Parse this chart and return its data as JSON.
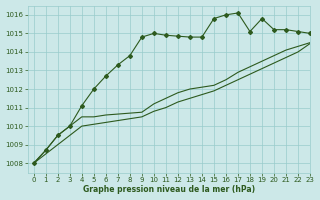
{
  "title": "Graphe pression niveau de la mer (hPa)",
  "bg_color": "#cce8e8",
  "grid_color": "#99cccc",
  "line_color": "#2d5a1e",
  "xlim": [
    -0.5,
    23
  ],
  "ylim": [
    1007.5,
    1016.5
  ],
  "yticks": [
    1008,
    1009,
    1010,
    1011,
    1012,
    1013,
    1014,
    1015,
    1016
  ],
  "xticks": [
    0,
    1,
    2,
    3,
    4,
    5,
    6,
    7,
    8,
    9,
    10,
    11,
    12,
    13,
    14,
    15,
    16,
    17,
    18,
    19,
    20,
    21,
    22,
    23
  ],
  "series_spike_x": [
    0,
    1,
    2,
    3,
    4,
    5,
    6,
    7,
    8,
    9,
    10,
    11,
    12,
    13,
    14,
    15,
    16,
    17,
    18,
    19,
    20,
    21,
    22,
    23
  ],
  "series_spike_y": [
    1008.0,
    1008.7,
    1009.5,
    1010.0,
    1011.1,
    1012.0,
    1012.7,
    1013.3,
    1013.8,
    1014.8,
    1015.0,
    1014.9,
    1014.85,
    1014.8,
    1014.8,
    1015.8,
    1016.0,
    1016.1,
    1015.1,
    1015.8,
    1015.2,
    1015.2,
    1015.1,
    1015.0
  ],
  "series_mid_x": [
    0,
    1,
    2,
    3,
    4,
    5,
    6,
    7,
    8,
    9,
    10,
    11,
    12,
    13,
    14,
    15,
    16,
    17,
    18,
    19,
    20,
    21,
    22,
    23
  ],
  "series_mid_y": [
    1008.0,
    1008.7,
    1009.5,
    1010.0,
    1010.5,
    1010.5,
    1010.6,
    1010.65,
    1010.7,
    1010.75,
    1011.2,
    1011.5,
    1011.8,
    1012.0,
    1012.1,
    1012.2,
    1012.5,
    1012.9,
    1013.2,
    1013.5,
    1013.8,
    1014.1,
    1014.3,
    1014.5
  ],
  "series_low_x": [
    0,
    1,
    2,
    3,
    4,
    5,
    6,
    7,
    8,
    9,
    10,
    11,
    12,
    13,
    14,
    15,
    16,
    17,
    18,
    19,
    20,
    21,
    22,
    23
  ],
  "series_low_y": [
    1008.0,
    1008.5,
    1009.0,
    1009.5,
    1010.0,
    1010.1,
    1010.2,
    1010.3,
    1010.4,
    1010.5,
    1010.8,
    1011.0,
    1011.3,
    1011.5,
    1011.7,
    1011.9,
    1012.2,
    1012.5,
    1012.8,
    1013.1,
    1013.4,
    1013.7,
    1014.0,
    1014.45
  ]
}
